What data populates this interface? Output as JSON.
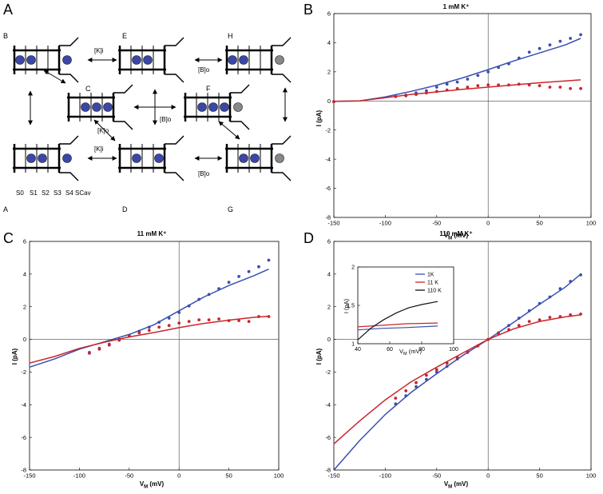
{
  "panel_letters": {
    "a": "A",
    "b": "B",
    "c": "C",
    "d": "D"
  },
  "diagram": {
    "state_labels": {
      "A": "A",
      "B": "B",
      "C": "C",
      "D": "D",
      "E": "E",
      "F": "F",
      "G": "G",
      "H": "H"
    },
    "site_labels": {
      "s0": "S0",
      "s1": "S1",
      "s2": "S2",
      "s3": "S3",
      "s4": "S4",
      "scav": "SCav"
    },
    "rates": {
      "b_e": "[K]i",
      "e_h": "[B]o",
      "c_f": "[B]o",
      "c_d": "[K]o",
      "a_d": "[K]i",
      "d_g": "[B]o"
    },
    "colors": {
      "ion": "#3b47a8",
      "blocker": "#888888"
    }
  },
  "chart_data": [
    {
      "type": "scatter",
      "title": "1 mM K⁺",
      "xlabel": "V",
      "xlabel_sub": "M",
      "xlabel_unit": " (mV)",
      "ylabel": "I (pA)",
      "xlim": [
        -150,
        100
      ],
      "ylim": [
        -8,
        6
      ],
      "xticks": [
        -150,
        -100,
        -50,
        0,
        50,
        100
      ],
      "yticks": [
        -8,
        -6,
        -4,
        -2,
        0,
        2,
        4,
        6
      ],
      "series": [
        {
          "color": "#3a4fb0",
          "points": [
            [
              -150,
              -0.05
            ],
            [
              -90,
              0.3
            ],
            [
              -80,
              0.4
            ],
            [
              -70,
              0.55
            ],
            [
              -60,
              0.7
            ],
            [
              -50,
              0.95
            ],
            [
              -40,
              1.15
            ],
            [
              -30,
              1.3
            ],
            [
              -20,
              1.5
            ],
            [
              -10,
              1.75
            ],
            [
              0,
              2.0
            ],
            [
              10,
              2.3
            ],
            [
              20,
              2.55
            ],
            [
              30,
              2.95
            ],
            [
              40,
              3.35
            ],
            [
              50,
              3.6
            ],
            [
              60,
              3.85
            ],
            [
              70,
              4.1
            ],
            [
              80,
              4.3
            ],
            [
              90,
              4.55
            ]
          ],
          "curve": [
            [
              -150,
              -0.03
            ],
            [
              -125,
              0.0
            ],
            [
              -100,
              0.28
            ],
            [
              -75,
              0.66
            ],
            [
              -50,
              1.08
            ],
            [
              -25,
              1.58
            ],
            [
              0,
              2.15
            ],
            [
              25,
              2.75
            ],
            [
              50,
              3.3
            ],
            [
              75,
              3.85
            ],
            [
              90,
              4.3
            ]
          ]
        },
        {
          "color": "#c9262c",
          "points": [
            [
              -150,
              -0.05
            ],
            [
              -90,
              0.3
            ],
            [
              -80,
              0.35
            ],
            [
              -70,
              0.45
            ],
            [
              -60,
              0.55
            ],
            [
              -50,
              0.65
            ],
            [
              -40,
              0.75
            ],
            [
              -30,
              0.85
            ],
            [
              -20,
              0.95
            ],
            [
              -10,
              1.05
            ],
            [
              0,
              1.1
            ],
            [
              10,
              1.1
            ],
            [
              20,
              1.1
            ],
            [
              30,
              1.15
            ],
            [
              40,
              1.1
            ],
            [
              50,
              1.05
            ],
            [
              60,
              0.95
            ],
            [
              70,
              0.95
            ],
            [
              80,
              0.85
            ],
            [
              90,
              0.85
            ]
          ],
          "curve": [
            [
              -150,
              -0.03
            ],
            [
              -125,
              0.0
            ],
            [
              -100,
              0.22
            ],
            [
              -75,
              0.45
            ],
            [
              -50,
              0.62
            ],
            [
              -25,
              0.8
            ],
            [
              0,
              0.95
            ],
            [
              25,
              1.1
            ],
            [
              50,
              1.25
            ],
            [
              75,
              1.38
            ],
            [
              90,
              1.45
            ]
          ]
        }
      ]
    },
    {
      "type": "scatter",
      "title": "11 mM K⁺",
      "xlabel": "V",
      "xlabel_sub": "M",
      "xlabel_unit": " (mV)",
      "ylabel": "I (pA)",
      "xlim": [
        -150,
        100
      ],
      "ylim": [
        -8,
        6
      ],
      "xticks": [
        -150,
        -100,
        -50,
        0,
        50,
        100
      ],
      "yticks": [
        -8,
        -6,
        -4,
        -2,
        0,
        2,
        4,
        6
      ],
      "series": [
        {
          "color": "#3a4fb0",
          "points": [
            [
              -90,
              -0.8
            ],
            [
              -80,
              -0.55
            ],
            [
              -70,
              -0.3
            ],
            [
              -60,
              0.0
            ],
            [
              -50,
              0.25
            ],
            [
              -40,
              0.5
            ],
            [
              -30,
              0.75
            ],
            [
              -20,
              1.05
            ],
            [
              -10,
              1.3
            ],
            [
              0,
              1.65
            ],
            [
              10,
              2.05
            ],
            [
              20,
              2.45
            ],
            [
              30,
              2.75
            ],
            [
              40,
              3.1
            ],
            [
              50,
              3.5
            ],
            [
              60,
              3.85
            ],
            [
              70,
              4.15
            ],
            [
              80,
              4.45
            ],
            [
              90,
              4.85
            ]
          ],
          "curve": [
            [
              -150,
              -1.7
            ],
            [
              -125,
              -1.2
            ],
            [
              -100,
              -0.6
            ],
            [
              -75,
              -0.15
            ],
            [
              -50,
              0.3
            ],
            [
              -25,
              0.9
            ],
            [
              0,
              1.75
            ],
            [
              25,
              2.6
            ],
            [
              50,
              3.3
            ],
            [
              75,
              3.9
            ],
            [
              90,
              4.3
            ]
          ]
        },
        {
          "color": "#c9262c",
          "points": [
            [
              -90,
              -0.85
            ],
            [
              -80,
              -0.6
            ],
            [
              -70,
              -0.35
            ],
            [
              -60,
              -0.05
            ],
            [
              -50,
              0.2
            ],
            [
              -40,
              0.4
            ],
            [
              -30,
              0.55
            ],
            [
              -20,
              0.75
            ],
            [
              -10,
              0.85
            ],
            [
              0,
              1.0
            ],
            [
              10,
              1.1
            ],
            [
              20,
              1.2
            ],
            [
              30,
              1.2
            ],
            [
              40,
              1.25
            ],
            [
              50,
              1.15
            ],
            [
              60,
              1.15
            ],
            [
              70,
              1.1
            ],
            [
              80,
              1.4
            ],
            [
              90,
              1.4
            ]
          ],
          "curve": [
            [
              -150,
              -1.45
            ],
            [
              -125,
              -1.05
            ],
            [
              -100,
              -0.55
            ],
            [
              -75,
              -0.18
            ],
            [
              -50,
              0.15
            ],
            [
              -25,
              0.42
            ],
            [
              0,
              0.72
            ],
            [
              25,
              0.98
            ],
            [
              50,
              1.18
            ],
            [
              75,
              1.35
            ],
            [
              90,
              1.42
            ]
          ]
        }
      ]
    },
    {
      "type": "scatter",
      "title": "110 mM K⁺",
      "xlabel": "V",
      "xlabel_sub": "M",
      "xlabel_unit": " (mV)",
      "ylabel": "I (pA)",
      "xlim": [
        -150,
        100
      ],
      "ylim": [
        -8,
        6
      ],
      "xticks": [
        -150,
        -100,
        -50,
        0,
        50,
        100
      ],
      "yticks": [
        -8,
        -6,
        -4,
        -2,
        0,
        2,
        4,
        6
      ],
      "series": [
        {
          "color": "#3a4fb0",
          "points": [
            [
              -90,
              -3.95
            ],
            [
              -80,
              -3.45
            ],
            [
              -70,
              -2.9
            ],
            [
              -60,
              -2.45
            ],
            [
              -50,
              -2.0
            ],
            [
              -40,
              -1.65
            ],
            [
              -30,
              -1.2
            ],
            [
              -20,
              -0.8
            ],
            [
              -10,
              -0.4
            ],
            [
              0,
              0.0
            ],
            [
              10,
              0.4
            ],
            [
              20,
              0.85
            ],
            [
              30,
              1.3
            ],
            [
              40,
              1.75
            ],
            [
              50,
              2.2
            ],
            [
              60,
              2.6
            ],
            [
              70,
              3.1
            ],
            [
              80,
              3.55
            ],
            [
              90,
              3.95
            ]
          ],
          "curve": [
            [
              -150,
              -8.0
            ],
            [
              -125,
              -6.2
            ],
            [
              -100,
              -4.6
            ],
            [
              -75,
              -3.25
            ],
            [
              -50,
              -2.1
            ],
            [
              -25,
              -1.0
            ],
            [
              0,
              0.0
            ],
            [
              25,
              1.05
            ],
            [
              50,
              2.15
            ],
            [
              75,
              3.2
            ],
            [
              90,
              4.0
            ]
          ]
        },
        {
          "color": "#c9262c",
          "points": [
            [
              -90,
              -3.6
            ],
            [
              -80,
              -3.15
            ],
            [
              -70,
              -2.65
            ],
            [
              -60,
              -2.2
            ],
            [
              -50,
              -1.85
            ],
            [
              -40,
              -1.45
            ],
            [
              -30,
              -1.1
            ],
            [
              -20,
              -0.75
            ],
            [
              -10,
              -0.4
            ],
            [
              0,
              0.0
            ],
            [
              10,
              0.35
            ],
            [
              20,
              0.6
            ],
            [
              30,
              0.85
            ],
            [
              40,
              1.1
            ],
            [
              50,
              1.2
            ],
            [
              60,
              1.35
            ],
            [
              70,
              1.4
            ],
            [
              80,
              1.5
            ],
            [
              90,
              1.55
            ]
          ],
          "curve": [
            [
              -150,
              -6.4
            ],
            [
              -125,
              -5.0
            ],
            [
              -100,
              -3.7
            ],
            [
              -75,
              -2.6
            ],
            [
              -50,
              -1.7
            ],
            [
              -25,
              -0.85
            ],
            [
              0,
              0.0
            ],
            [
              25,
              0.65
            ],
            [
              50,
              1.1
            ],
            [
              75,
              1.38
            ],
            [
              90,
              1.5
            ]
          ]
        }
      ],
      "inset": {
        "xlim": [
          40,
          100
        ],
        "ylim": [
          1,
          2
        ],
        "xticks": [
          40,
          60,
          80,
          100
        ],
        "yticks": [
          1,
          1.5,
          2
        ],
        "xlabel": "V",
        "xlabel_sub": "M",
        "xlabel_unit": " (mV)",
        "ylabel": "I (pA)",
        "series": [
          {
            "name": "1K",
            "color": "#3a4fb0",
            "curve": [
              [
                40,
                1.18
              ],
              [
                55,
                1.2
              ],
              [
                70,
                1.21
              ],
              [
                90,
                1.23
              ]
            ]
          },
          {
            "name": "11 K",
            "color": "#c9262c",
            "curve": [
              [
                40,
                1.22
              ],
              [
                55,
                1.24
              ],
              [
                70,
                1.26
              ],
              [
                90,
                1.27
              ]
            ]
          },
          {
            "name": "110 K",
            "color": "#111111",
            "curve": [
              [
                40,
                1.05
              ],
              [
                48,
                1.2
              ],
              [
                56,
                1.31
              ],
              [
                64,
                1.4
              ],
              [
                72,
                1.47
              ],
              [
                80,
                1.51
              ],
              [
                90,
                1.55
              ]
            ]
          }
        ]
      }
    }
  ]
}
